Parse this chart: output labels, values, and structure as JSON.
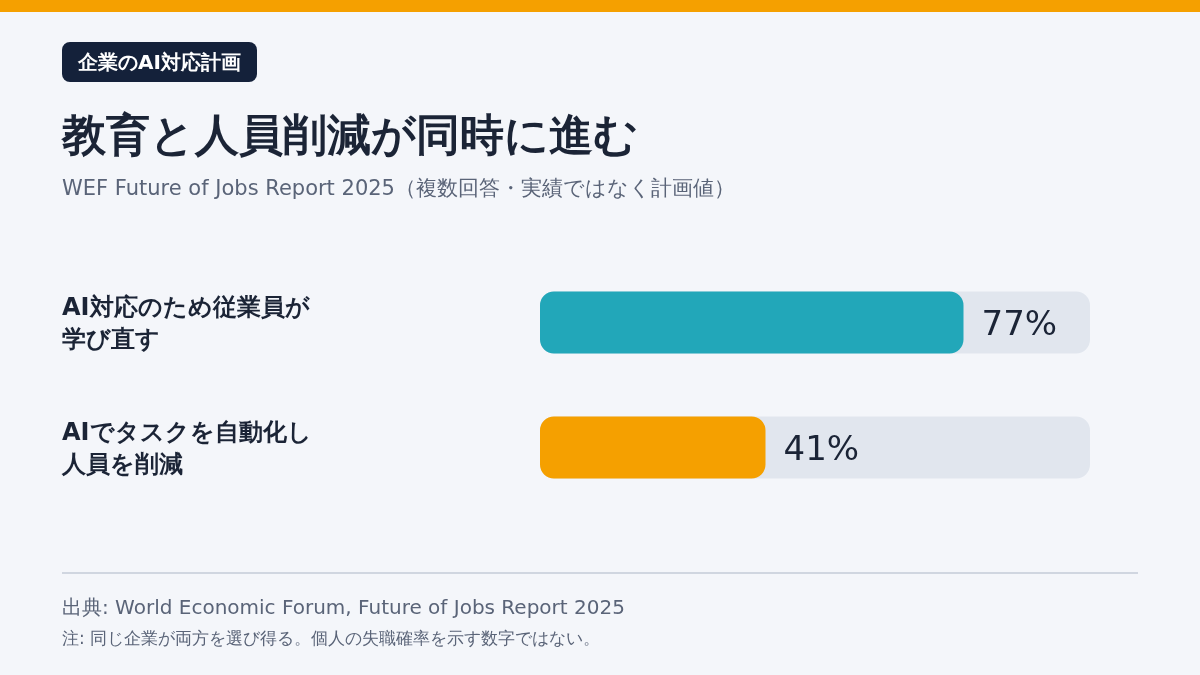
{
  "chart_data": {
    "type": "bar",
    "orientation": "horizontal",
    "title": "教育と人員削減が同時に進む",
    "subtitle": "WEF Future of Jobs Report 2025（複数回答・実績ではなく計画値）",
    "categories": [
      "AI対応のため従業員が学び直す",
      "AIでタスクを自動化し人員を削減"
    ],
    "values": [
      77,
      41
    ],
    "colors": [
      "#22a7b9",
      "#f5a000"
    ],
    "value_labels": [
      "77%",
      "41%"
    ],
    "xlim": [
      0,
      100
    ],
    "tick_labels": "y",
    "annotations": [
      "企業のAI対応計画",
      "出典: World Economic Forum, Future of Jobs Report 2025",
      "注: 同じ企業が両方を選び得る。個人の失職確率を示す数字ではない。"
    ]
  }
}
